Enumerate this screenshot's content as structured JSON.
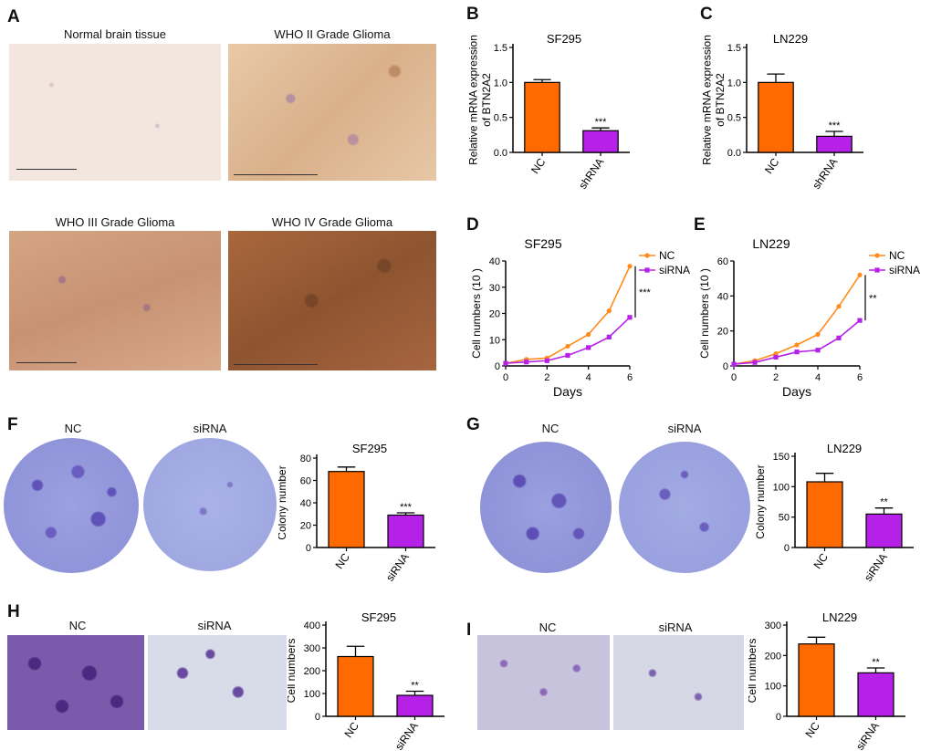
{
  "panels": {
    "A": {
      "label": "A",
      "images": [
        {
          "caption": "Normal brain tissue"
        },
        {
          "caption": "WHO II Grade Glioma"
        },
        {
          "caption": "WHO III Grade Glioma"
        },
        {
          "caption": "WHO IV Grade Glioma"
        }
      ]
    },
    "F": {
      "label": "F",
      "dish_labels": [
        "NC",
        "siRNA"
      ]
    },
    "G": {
      "label": "G",
      "dish_labels": [
        "NC",
        "siRNA"
      ]
    },
    "H": {
      "label": "H",
      "image_labels": [
        "NC",
        "siRNA"
      ]
    },
    "I": {
      "label": "I",
      "image_labels": [
        "NC",
        "siRNA"
      ]
    }
  },
  "chart_data": [
    {
      "panel": "B",
      "type": "bar",
      "title": "SF295",
      "ylabel": "Relative  mRNA expression of  BTN2A2",
      "categories": [
        "NC",
        "shRNA"
      ],
      "values": [
        1.0,
        0.31
      ],
      "errors": [
        0.04,
        0.04
      ],
      "ylim": [
        0,
        1.5
      ],
      "yticks": [
        "0.0",
        "0.5",
        "1.0",
        "1.5"
      ],
      "significance": [
        "",
        "***"
      ],
      "colors": [
        "#ff6a00",
        "#b621e8"
      ]
    },
    {
      "panel": "C",
      "type": "bar",
      "title": "LN229",
      "ylabel": "Relative  mRNA expression of  BTN2A2",
      "categories": [
        "NC",
        "shRNA"
      ],
      "values": [
        1.0,
        0.23
      ],
      "errors": [
        0.12,
        0.07
      ],
      "ylim": [
        0,
        1.5
      ],
      "yticks": [
        "0.0",
        "0.5",
        "1.0",
        "1.5"
      ],
      "significance": [
        "",
        "***"
      ],
      "colors": [
        "#ff6a00",
        "#b621e8"
      ]
    },
    {
      "panel": "D",
      "type": "line",
      "title": "SF295",
      "xlabel": "Days",
      "ylabel": "Cell numbers (10  )",
      "x": [
        0,
        1,
        2,
        3,
        4,
        5,
        6
      ],
      "xticks": [
        "0",
        "2",
        "4",
        "6"
      ],
      "ylim": [
        0,
        40
      ],
      "yticks": [
        "0",
        "10",
        "20",
        "30",
        "40"
      ],
      "series": [
        {
          "name": "NC",
          "values": [
            1,
            2.5,
            3,
            7.5,
            12,
            21,
            38
          ],
          "color": "#ff8c1a"
        },
        {
          "name": "siRNA",
          "values": [
            1,
            1.5,
            2,
            4,
            7,
            11,
            18.5
          ],
          "color": "#b621e8"
        }
      ],
      "significance": "***",
      "legend": "top-right"
    },
    {
      "panel": "E",
      "type": "line",
      "title": "LN229",
      "xlabel": "Days",
      "ylabel": "Cell numbers (10  )",
      "x": [
        0,
        1,
        2,
        3,
        4,
        5,
        6
      ],
      "xticks": [
        "0",
        "2",
        "4",
        "6"
      ],
      "ylim": [
        0,
        60
      ],
      "yticks": [
        "0",
        "20",
        "40",
        "60"
      ],
      "series": [
        {
          "name": "NC",
          "values": [
            1,
            3,
            7,
            12,
            18,
            34,
            52
          ],
          "color": "#ff8c1a"
        },
        {
          "name": "siRNA",
          "values": [
            1,
            2,
            5,
            8,
            9,
            16,
            26
          ],
          "color": "#b621e8"
        }
      ],
      "significance": "**",
      "legend": "top-right"
    },
    {
      "panel": "F",
      "type": "bar",
      "title": "SF295",
      "ylabel": "Colony number",
      "categories": [
        "NC",
        "siRNA"
      ],
      "values": [
        68,
        29
      ],
      "errors": [
        4,
        2
      ],
      "ylim": [
        0,
        80
      ],
      "yticks": [
        "0",
        "20",
        "40",
        "60",
        "80"
      ],
      "significance": [
        "",
        "***"
      ],
      "colors": [
        "#ff6a00",
        "#b621e8"
      ]
    },
    {
      "panel": "G",
      "type": "bar",
      "title": "LN229",
      "ylabel": "Colony number",
      "categories": [
        "NC",
        "siRNA"
      ],
      "values": [
        108,
        55
      ],
      "errors": [
        14,
        10
      ],
      "ylim": [
        0,
        150
      ],
      "yticks": [
        "0",
        "50",
        "100",
        "150"
      ],
      "significance": [
        "",
        "**"
      ],
      "colors": [
        "#ff6a00",
        "#b621e8"
      ]
    },
    {
      "panel": "H",
      "type": "bar",
      "title": "SF295",
      "ylabel": "Cell numbers",
      "categories": [
        "NC",
        "siRNA"
      ],
      "values": [
        262,
        92
      ],
      "errors": [
        45,
        18
      ],
      "ylim": [
        0,
        400
      ],
      "yticks": [
        "0",
        "100",
        "200",
        "300",
        "400"
      ],
      "significance": [
        "",
        "**"
      ],
      "colors": [
        "#ff6a00",
        "#b621e8"
      ]
    },
    {
      "panel": "I",
      "type": "bar",
      "title": "LN229",
      "ylabel": "Cell numbers",
      "categories": [
        "NC",
        "siRNA"
      ],
      "values": [
        238,
        143
      ],
      "errors": [
        22,
        16
      ],
      "ylim": [
        0,
        300
      ],
      "yticks": [
        "0",
        "100",
        "200",
        "300"
      ],
      "significance": [
        "",
        "**"
      ],
      "colors": [
        "#ff6a00",
        "#b621e8"
      ]
    }
  ]
}
